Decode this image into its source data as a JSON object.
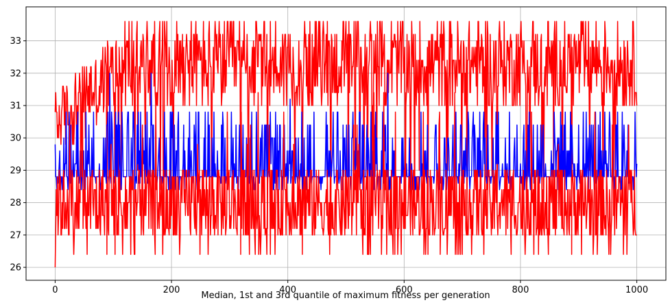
{
  "chart_data": {
    "type": "line",
    "xlabel": "Median, 1st and 3rd quantile of maximum fitness per generation",
    "ylabel": "",
    "xlim": [
      -50,
      1050
    ],
    "ylim": [
      25.6,
      34.05
    ],
    "x_ticks": [
      0,
      200,
      400,
      600,
      800,
      1000
    ],
    "y_ticks": [
      26,
      27,
      28,
      29,
      30,
      31,
      32,
      33
    ],
    "grid": true,
    "n_generations": 1001,
    "series": [
      {
        "color": "#ff0000",
        "role": "upper-quantile",
        "start": 30.8,
        "levels": [
          29.8,
          30.0,
          30.4,
          30.8,
          31.0,
          31.4,
          31.6,
          32.0,
          32.2,
          32.4,
          32.8,
          33.0,
          33.2,
          33.6
        ],
        "range_start": [
          29.8,
          31.4
        ],
        "range_end": [
          31.6,
          33.6
        ],
        "max": 33.6
      },
      {
        "color": "#0000ff",
        "role": "median",
        "start": 29.8,
        "levels": [
          28.0,
          28.4,
          28.6,
          28.8,
          29.2,
          29.6,
          30.0,
          30.4,
          30.8,
          31.2,
          31.6,
          32.0
        ],
        "base": 28.8,
        "max": 32.0
      },
      {
        "color": "#ff0000",
        "role": "lower-quantile",
        "start": 26.0,
        "levels": [
          26.4,
          27.0,
          27.2,
          27.6,
          28.0,
          28.4,
          28.8,
          29.0
        ],
        "min": 26.0
      }
    ]
  }
}
